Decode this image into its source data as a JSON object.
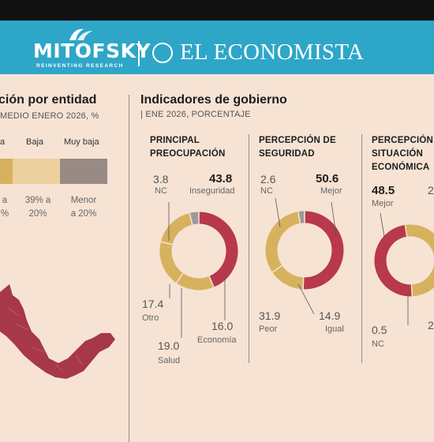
{
  "header": {
    "brand_left": "MITOFSKY",
    "brand_left_tagline": "REINVENTING RESEARCH",
    "brand_right": "EL ECONOMISTA"
  },
  "left_section": {
    "title": "ción por entidad",
    "subtitle": "MEDIO ENERO 2026, %",
    "legend": [
      {
        "label": "a",
        "range_line1": "a",
        "range_line2": "%",
        "color": "#d6b25e"
      },
      {
        "label": "Baja",
        "range_line1": "39% a",
        "range_line2": "20%",
        "color": "#ecd09e"
      },
      {
        "label": "Muy baja",
        "range_line1": "Menor",
        "range_line2": "a 20%",
        "color": "#9a8a86"
      }
    ],
    "map_color": "#a7374a"
  },
  "right_section": {
    "title": "Indicadores de gobierno",
    "subtitle": "ENE 2026, PORCENTAJE"
  },
  "colors": {
    "red": "#b8384c",
    "gold": "#d6b25e",
    "gray": "#9a9a9a"
  },
  "chart_data": [
    {
      "type": "pie",
      "title_line1": "PRINCIPAL",
      "title_line2": "PREOCUPACIÓN",
      "slices": [
        {
          "label": "Inseguridad",
          "value": 43.8,
          "value_text": "43.8",
          "color": "#b8384c"
        },
        {
          "label": "Economía",
          "value": 16.0,
          "value_text": "16.0",
          "color": "#d6b25e"
        },
        {
          "label": "Salud",
          "value": 19.0,
          "value_text": "19.0",
          "color": "#d6b25e"
        },
        {
          "label": "Otro",
          "value": 17.4,
          "value_text": "17.4",
          "color": "#d6b25e"
        },
        {
          "label": "NC",
          "value": 3.8,
          "value_text": "3.8",
          "color": "#9a9a9a"
        }
      ]
    },
    {
      "type": "pie",
      "title_line1": "PERCEPCIÓN DE",
      "title_line2": "SEGURIDAD",
      "slices": [
        {
          "label": "Mejor",
          "value": 50.6,
          "value_text": "50.6",
          "color": "#b8384c"
        },
        {
          "label": "Igual",
          "value": 14.9,
          "value_text": "14.9",
          "color": "#d6b25e"
        },
        {
          "label": "Peor",
          "value": 31.9,
          "value_text": "31.9",
          "color": "#d6b25e"
        },
        {
          "label": "NC",
          "value": 2.6,
          "value_text": "2.6",
          "color": "#9a9a9a"
        }
      ]
    },
    {
      "type": "pie",
      "title_line1": "PERCEPCIÓN",
      "title_line2": "SITUACIÓN",
      "title_line3": "ECONÓMICA",
      "slices": [
        {
          "label": "Mejor",
          "value": 48.5,
          "value_text": "48.5",
          "color": "#b8384c"
        },
        {
          "label": "NC",
          "value": 0.5,
          "value_text": "0.5",
          "color": "#9a9a9a"
        }
      ],
      "partial_labels": {
        "right_top": "2",
        "right_bottom": "2"
      }
    }
  ]
}
